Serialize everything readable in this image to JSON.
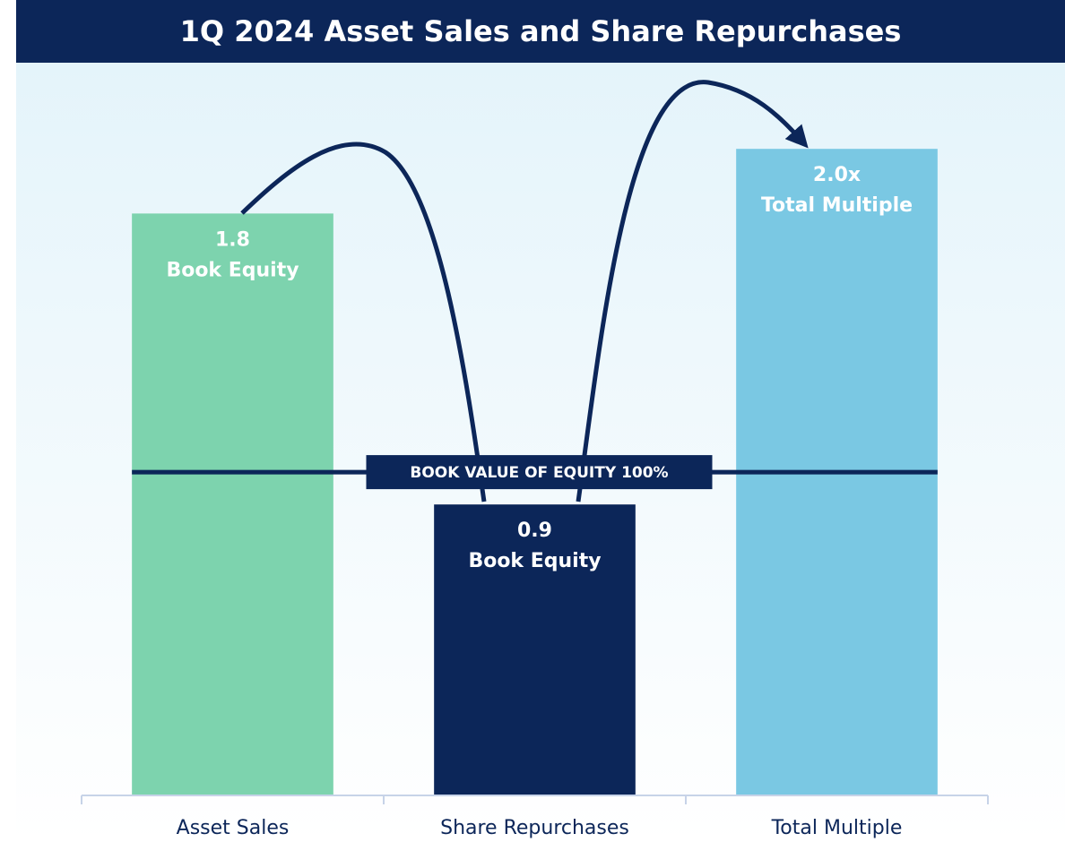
{
  "chart_data": {
    "type": "bar",
    "title": "1Q 2024 Asset Sales and Share Repurchases",
    "categories": [
      "Asset Sales",
      "Share Repurchases",
      "Total Multiple"
    ],
    "values": [
      1.8,
      0.9,
      2.0
    ],
    "value_labels": [
      "1.8",
      "0.9",
      "2.0x"
    ],
    "bar_annotations": [
      "Book Equity",
      "Book Equity",
      "Total Multiple"
    ],
    "colors": [
      "#7dd3ae",
      "#0c2659",
      "#7ac8e3"
    ],
    "reference_line": {
      "value": 1.0,
      "label": "BOOK VALUE OF EQUITY 100%"
    },
    "ylim": [
      0,
      2.2
    ]
  }
}
